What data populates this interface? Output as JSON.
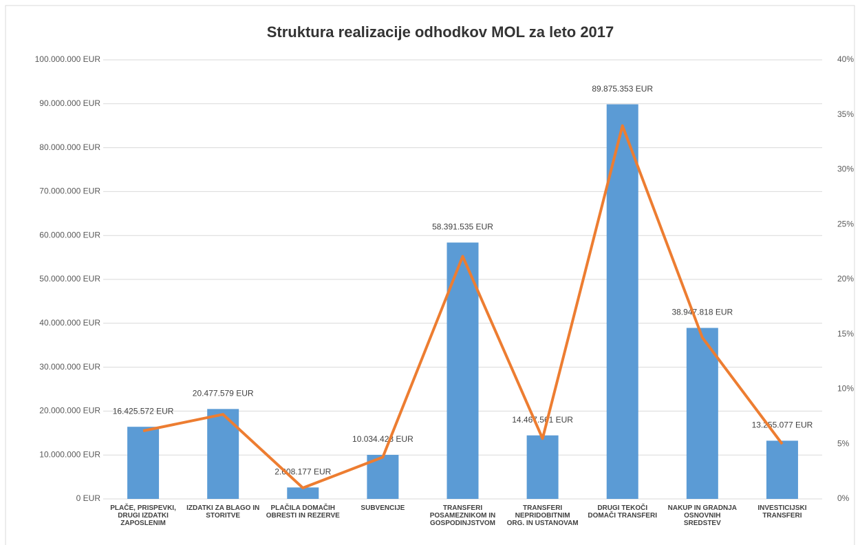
{
  "chart_data": {
    "type": "bar-line",
    "title": "Struktura realizacije odhodkov MOL za leto 2017",
    "categories": [
      "PLAČE, PRISPEVKI, DRUGI IZDATKI ZAPOSLENIM",
      "IZDATKI ZA BLAGO IN STORITVE",
      "PLAČILA DOMAČIH OBRESTI IN REZERVE",
      "SUBVENCIJE",
      "TRANSFERI POSAMEZNIKOM IN GOSPODINJSTVOM",
      "TRANSFERI NEPRIDOBITNIM ORG. IN USTANOVAM",
      "DRUGI TEKOČI DOMAČI TRANSFERI",
      "NAKUP IN GRADNJA OSNOVNIH SREDSTEV",
      "INVESTICIJSKI TRANSFERI"
    ],
    "series": [
      {
        "type": "bar",
        "color": "#5b9bd5",
        "values": [
          16425572,
          20477579,
          2608177,
          10034428,
          58391535,
          14467561,
          89875353,
          38947818,
          13255077
        ],
        "value_labels": [
          "16.425.572 EUR",
          "20.477.579 EUR",
          "2.608.177 EUR",
          "10.034.428 EUR",
          "58.391.535 EUR",
          "14.467.561 EUR",
          "89.875.353 EUR",
          "38.947.818 EUR",
          "13.255.077 EUR"
        ]
      },
      {
        "type": "line",
        "axis": "y2",
        "color": "#ed7d31",
        "values": [
          6.2,
          7.7,
          1.0,
          3.8,
          22.1,
          5.5,
          34.0,
          14.7,
          5.0
        ]
      }
    ],
    "ylim": [
      0,
      100000000
    ],
    "yticks": [
      {
        "value": 0,
        "label": "0 EUR"
      },
      {
        "value": 10000000,
        "label": "10.000.000 EUR"
      },
      {
        "value": 20000000,
        "label": "20.000.000 EUR"
      },
      {
        "value": 30000000,
        "label": "30.000.000 EUR"
      },
      {
        "value": 40000000,
        "label": "40.000.000 EUR"
      },
      {
        "value": 50000000,
        "label": "50.000.000 EUR"
      },
      {
        "value": 60000000,
        "label": "60.000.000 EUR"
      },
      {
        "value": 70000000,
        "label": "70.000.000 EUR"
      },
      {
        "value": 80000000,
        "label": "80.000.000 EUR"
      },
      {
        "value": 90000000,
        "label": "90.000.000 EUR"
      },
      {
        "value": 100000000,
        "label": "100.000.000 EUR"
      }
    ],
    "y2lim": [
      0,
      40
    ],
    "y2ticks": [
      {
        "value": 0,
        "label": "0%"
      },
      {
        "value": 5,
        "label": "5%"
      },
      {
        "value": 10,
        "label": "10%"
      },
      {
        "value": 15,
        "label": "15%"
      },
      {
        "value": 20,
        "label": "20%"
      },
      {
        "value": 25,
        "label": "25%"
      },
      {
        "value": 30,
        "label": "30%"
      },
      {
        "value": 35,
        "label": "35%"
      },
      {
        "value": 40,
        "label": "40%"
      }
    ],
    "grid": true
  }
}
